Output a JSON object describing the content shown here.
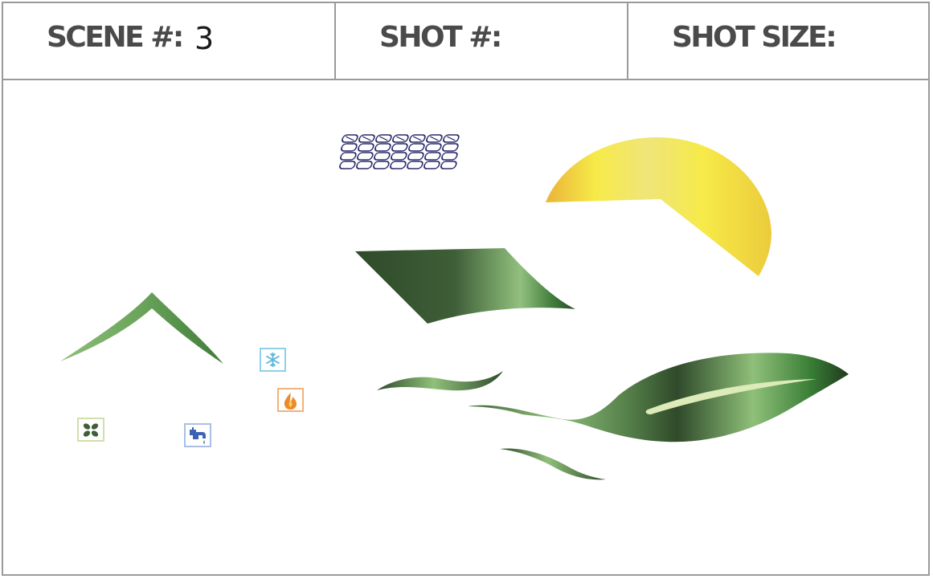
{
  "header": {
    "scene_label": "SCENE #:",
    "scene_value": "3",
    "shot_label": "SHOT #:",
    "shot_size_label": "SHOT SIZE:"
  },
  "artwork": {
    "items": [
      "solar-panel-icon",
      "sun-icon",
      "roof-panel-icon",
      "house-roof-icon",
      "snowflake-icon",
      "flame-icon",
      "fan-icon",
      "faucet-icon",
      "leaf-icon",
      "wind-swoosh-icon"
    ]
  },
  "colors": {
    "frame": "#9a9a9a",
    "label": "#4a4a4a",
    "leaf_dark": "#2f4a2a",
    "leaf_light": "#8fc07a",
    "sun_yellow": "#f6ea48",
    "sun_orange": "#eab33a",
    "solar_navy": "#2b2a6b"
  }
}
